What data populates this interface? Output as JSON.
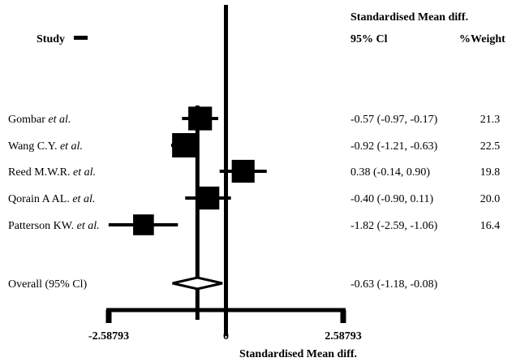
{
  "header": {
    "study_label": "Study",
    "effect_label": "Standardised Mean diff.",
    "ci_label": "95% Cl",
    "weight_label": "%Weight"
  },
  "chart_data": {
    "type": "forest",
    "xlabel": "Standardised Mean diff.",
    "xlim": [
      -2.58793,
      2.58793
    ],
    "ticks": [
      {
        "value": -2.58793,
        "label": "-2.58793"
      },
      {
        "value": 0,
        "label": "0"
      },
      {
        "value": 2.58793,
        "label": "2.58793"
      }
    ],
    "studies": [
      {
        "prefix": "Gombar ",
        "suffix": "et al.",
        "estimate": -0.57,
        "lower": -0.97,
        "upper": -0.17,
        "ci_text": "-0.57 (-0.97, -0.17)",
        "weight": 21.3,
        "weight_text": "21.3"
      },
      {
        "prefix": "Wang C.Y. ",
        "suffix": "et al.",
        "estimate": -0.92,
        "lower": -1.21,
        "upper": -0.63,
        "ci_text": "-0.92 (-1.21, -0.63)",
        "weight": 22.5,
        "weight_text": "22.5"
      },
      {
        "prefix": "Reed M.W.R. ",
        "suffix": "et al.",
        "estimate": 0.38,
        "lower": -0.14,
        "upper": 0.9,
        "ci_text": "0.38 (-0.14, 0.90)",
        "weight": 19.8,
        "weight_text": "19.8"
      },
      {
        "prefix": "Qorain A AL. ",
        "suffix": "et al.",
        "estimate": -0.4,
        "lower": -0.9,
        "upper": 0.11,
        "ci_text": "-0.40 (-0.90, 0.11)",
        "weight": 20.0,
        "weight_text": "20.0"
      },
      {
        "prefix": "Patterson KW. ",
        "suffix": "et al.",
        "estimate": -1.82,
        "lower": -2.59,
        "upper": -1.06,
        "ci_text": "-1.82 (-2.59, -1.06)",
        "weight": 16.4,
        "weight_text": "16.4"
      }
    ],
    "overall": {
      "label": "Overall (95% Cl)",
      "estimate": -0.63,
      "lower": -1.18,
      "upper": -0.08,
      "ci_text": "-0.63 (-1.18, -0.08)"
    }
  }
}
